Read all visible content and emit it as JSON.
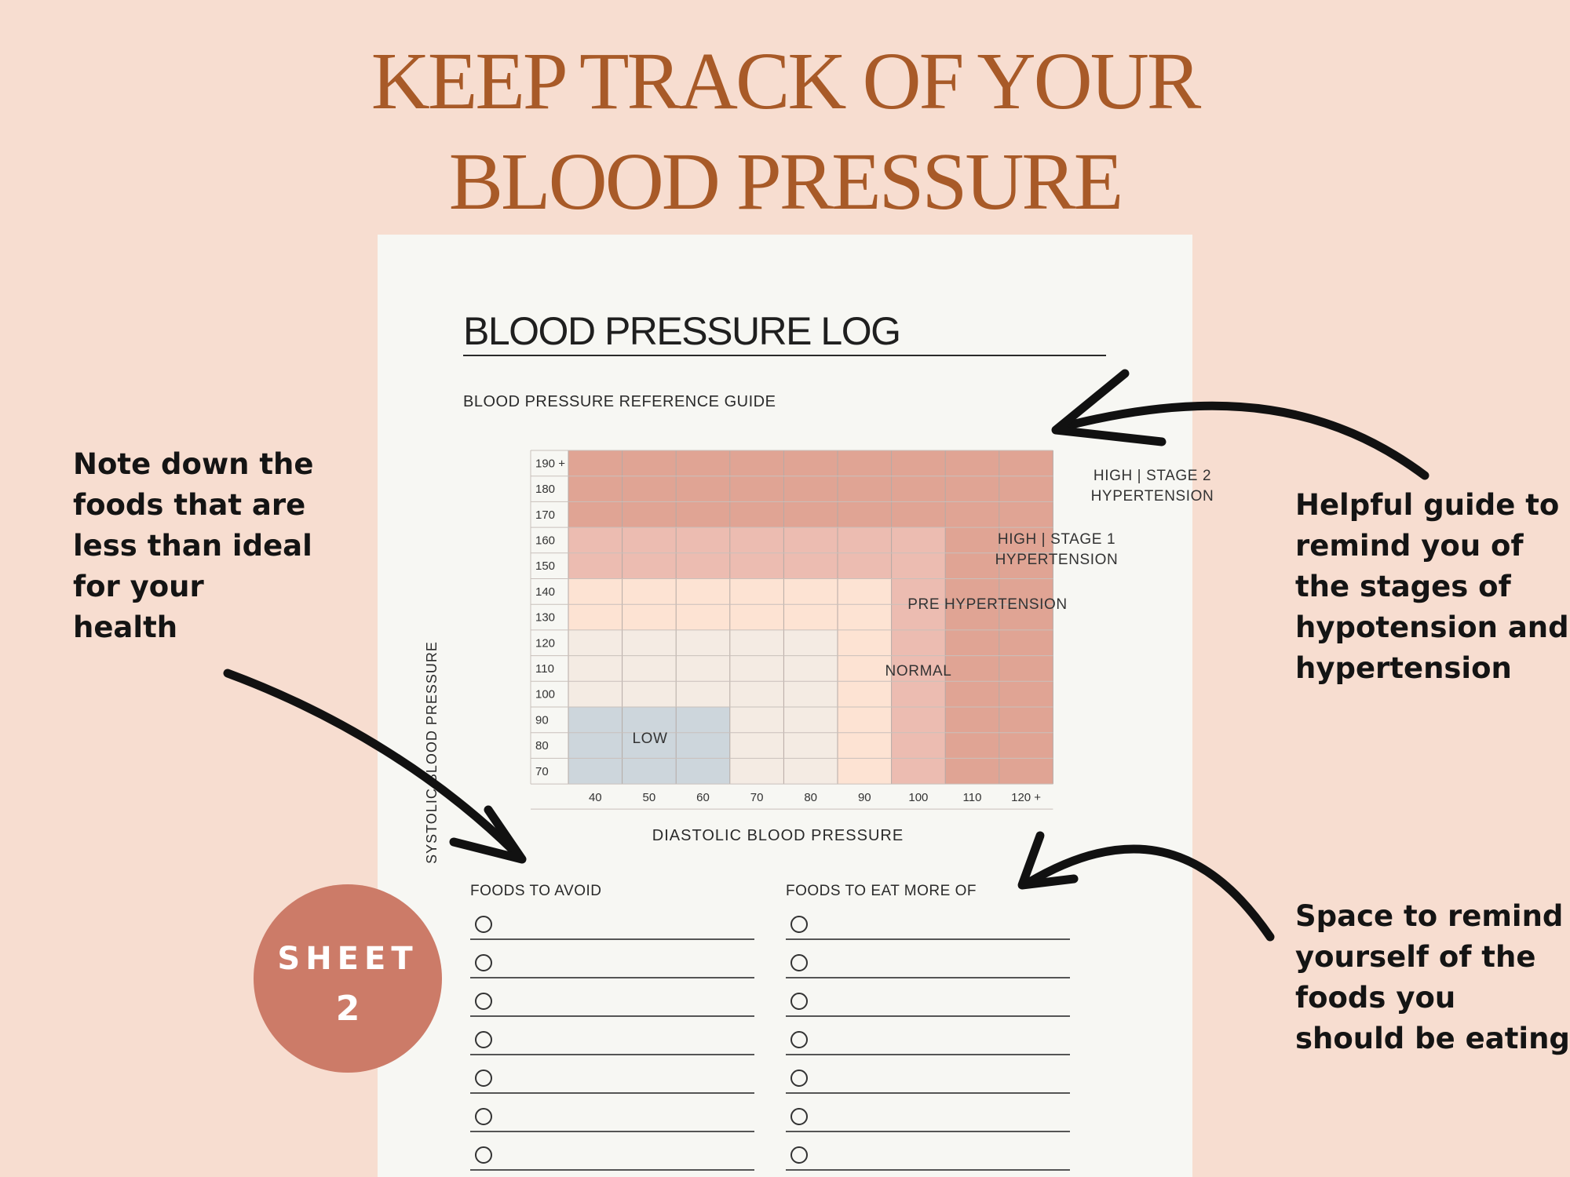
{
  "headline": {
    "line1": "KEEP TRACK OF YOUR",
    "line2": "BLOOD PRESSURE"
  },
  "sheet": {
    "title": "BLOOD PRESSURE LOG",
    "reference_title": "BLOOD PRESSURE REFERENCE GUIDE",
    "y_axis_title": "SYSTOLIC BLOOD PRESSURE",
    "x_axis_title": "DIASTOLIC BLOOD PRESSURE",
    "foods_avoid_label": "FOODS TO AVOID",
    "foods_more_label": "FOODS TO EAT MORE OF",
    "checklist_rows": 7
  },
  "badge": {
    "word": "SHEET",
    "number": "2"
  },
  "notes": {
    "left": "Note down the\nfoods that are\nless than ideal\nfor your\nhealth",
    "right_top": "Helpful guide to\nremind you of\nthe stages of\nhypotension and\nhypertension",
    "right_bottom": "Space to remind\nyourself of the\nfoods you\nshould be eating"
  },
  "chart_data": {
    "type": "heatmap",
    "title": "BLOOD PRESSURE REFERENCE GUIDE",
    "xlabel": "DIASTOLIC BLOOD PRESSURE",
    "ylabel": "SYSTOLIC BLOOD PRESSURE",
    "x_ticks": [
      "40",
      "50",
      "60",
      "70",
      "80",
      "90",
      "100",
      "110",
      "120 +"
    ],
    "y_ticks": [
      "190 +",
      "180",
      "170",
      "160",
      "150",
      "140",
      "130",
      "120",
      "110",
      "100",
      "90",
      "80",
      "70"
    ],
    "grid": true,
    "zones": [
      {
        "label": "LOW",
        "color": "#cdd6dc",
        "x_range": [
          "40",
          "60"
        ],
        "y_range": [
          "70",
          "90"
        ]
      },
      {
        "label": "NORMAL",
        "color": "#f4ebe3",
        "x_range": [
          "40",
          "80"
        ],
        "y_range": [
          "70",
          "120"
        ]
      },
      {
        "label": "PRE HYPERTENSION",
        "color": "#fde3d3",
        "x_range": [
          "40",
          "90"
        ],
        "y_range": [
          "70",
          "140"
        ]
      },
      {
        "label": "HIGH | STAGE 1\nHYPERTENSION",
        "color": "#ecbcb1",
        "x_range": [
          "40",
          "100"
        ],
        "y_range": [
          "70",
          "160"
        ]
      },
      {
        "label": "HIGH | STAGE 2\nHYPERTENSION",
        "color": "#e0a494",
        "x_range": [
          "40",
          "120 +"
        ],
        "y_range": [
          "70",
          "190 +"
        ]
      }
    ]
  }
}
